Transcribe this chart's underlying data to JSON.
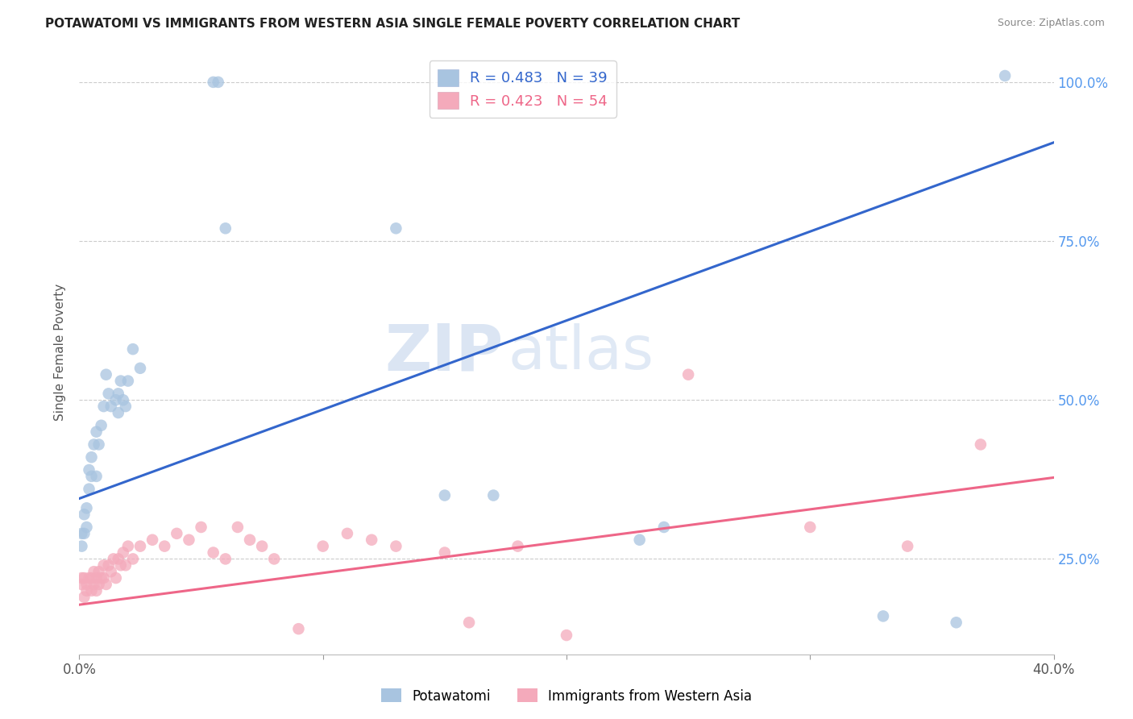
{
  "title": "POTAWATOMI VS IMMIGRANTS FROM WESTERN ASIA SINGLE FEMALE POVERTY CORRELATION CHART",
  "source": "Source: ZipAtlas.com",
  "ylabel": "Single Female Poverty",
  "legend_label_blue": "Potawatomi",
  "legend_label_pink": "Immigrants from Western Asia",
  "blue_R": 0.483,
  "blue_N": 39,
  "pink_R": 0.423,
  "pink_N": 54,
  "blue_color": "#A8C4E0",
  "pink_color": "#F4AABB",
  "blue_line_color": "#3366CC",
  "pink_line_color": "#EE6688",
  "watermark_ZIP": "ZIP",
  "watermark_atlas": "atlas",
  "xlim": [
    0.0,
    0.4
  ],
  "ylim": [
    0.1,
    1.05
  ],
  "x_ticks": [
    0.0,
    0.1,
    0.2,
    0.3,
    0.4
  ],
  "y_ticks": [
    0.25,
    0.5,
    0.75,
    1.0
  ],
  "y_tick_labels": [
    "25.0%",
    "50.0%",
    "75.0%",
    "100.0%"
  ],
  "blue_line_x": [
    0.0,
    0.4
  ],
  "blue_line_y": [
    0.345,
    0.905
  ],
  "pink_line_x": [
    0.0,
    0.4
  ],
  "pink_line_y": [
    0.178,
    0.378
  ],
  "blue_scatter_x": [
    0.001,
    0.001,
    0.002,
    0.002,
    0.003,
    0.003,
    0.004,
    0.004,
    0.005,
    0.005,
    0.006,
    0.007,
    0.007,
    0.008,
    0.009,
    0.01,
    0.011,
    0.012,
    0.013,
    0.015,
    0.016,
    0.016,
    0.017,
    0.018,
    0.019,
    0.02,
    0.022,
    0.025,
    0.055,
    0.057,
    0.06,
    0.13,
    0.15,
    0.17,
    0.23,
    0.24,
    0.33,
    0.36,
    0.38
  ],
  "blue_scatter_y": [
    0.27,
    0.29,
    0.29,
    0.32,
    0.3,
    0.33,
    0.36,
    0.39,
    0.38,
    0.41,
    0.43,
    0.45,
    0.38,
    0.43,
    0.46,
    0.49,
    0.54,
    0.51,
    0.49,
    0.5,
    0.48,
    0.51,
    0.53,
    0.5,
    0.49,
    0.53,
    0.58,
    0.55,
    1.0,
    1.0,
    0.77,
    0.77,
    0.35,
    0.35,
    0.28,
    0.3,
    0.16,
    0.15,
    1.01
  ],
  "pink_scatter_x": [
    0.001,
    0.001,
    0.002,
    0.002,
    0.003,
    0.003,
    0.004,
    0.005,
    0.005,
    0.006,
    0.006,
    0.007,
    0.007,
    0.008,
    0.008,
    0.009,
    0.01,
    0.01,
    0.011,
    0.012,
    0.013,
    0.014,
    0.015,
    0.016,
    0.017,
    0.018,
    0.019,
    0.02,
    0.022,
    0.025,
    0.03,
    0.035,
    0.04,
    0.045,
    0.05,
    0.055,
    0.06,
    0.065,
    0.07,
    0.075,
    0.08,
    0.09,
    0.1,
    0.11,
    0.12,
    0.13,
    0.15,
    0.16,
    0.18,
    0.2,
    0.25,
    0.3,
    0.34,
    0.37
  ],
  "pink_scatter_y": [
    0.21,
    0.22,
    0.19,
    0.22,
    0.21,
    0.2,
    0.22,
    0.2,
    0.22,
    0.21,
    0.23,
    0.22,
    0.2,
    0.23,
    0.21,
    0.22,
    0.24,
    0.22,
    0.21,
    0.24,
    0.23,
    0.25,
    0.22,
    0.25,
    0.24,
    0.26,
    0.24,
    0.27,
    0.25,
    0.27,
    0.28,
    0.27,
    0.29,
    0.28,
    0.3,
    0.26,
    0.25,
    0.3,
    0.28,
    0.27,
    0.25,
    0.14,
    0.27,
    0.29,
    0.28,
    0.27,
    0.26,
    0.15,
    0.27,
    0.13,
    0.54,
    0.3,
    0.27,
    0.43
  ]
}
